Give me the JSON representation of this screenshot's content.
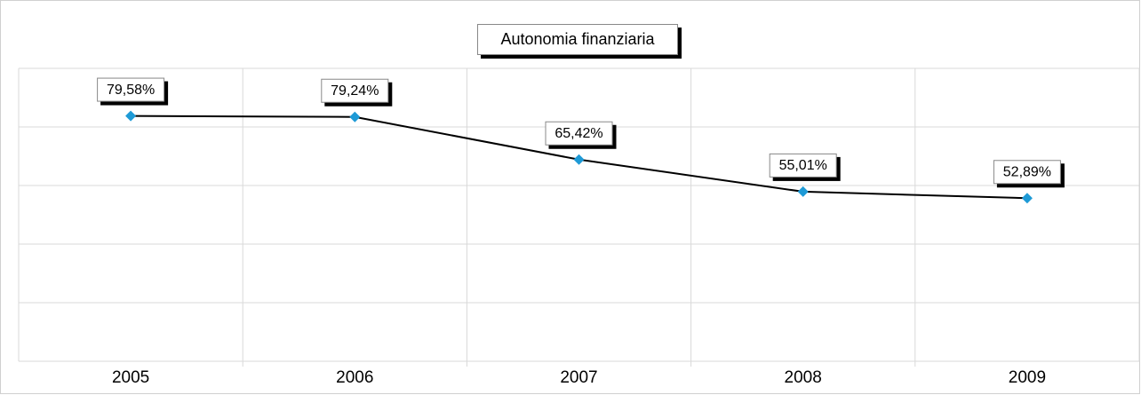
{
  "chart_data": {
    "type": "line",
    "title": "Autonomia finanziaria",
    "categories": [
      "2005",
      "2006",
      "2007",
      "2008",
      "2009"
    ],
    "series": [
      {
        "name": "Autonomia finanziaria",
        "color": "#000000",
        "marker_color": "#1e9ad6",
        "values": [
          79.58,
          79.24,
          65.42,
          55.01,
          52.89
        ],
        "value_labels": [
          "79,58%",
          "79,24%",
          "65,42%",
          "55,01%",
          "52,89%"
        ]
      }
    ],
    "ylim": [
      0,
      95
    ],
    "yticks": [
      0,
      19,
      38,
      57,
      76,
      95
    ],
    "grid": true
  }
}
